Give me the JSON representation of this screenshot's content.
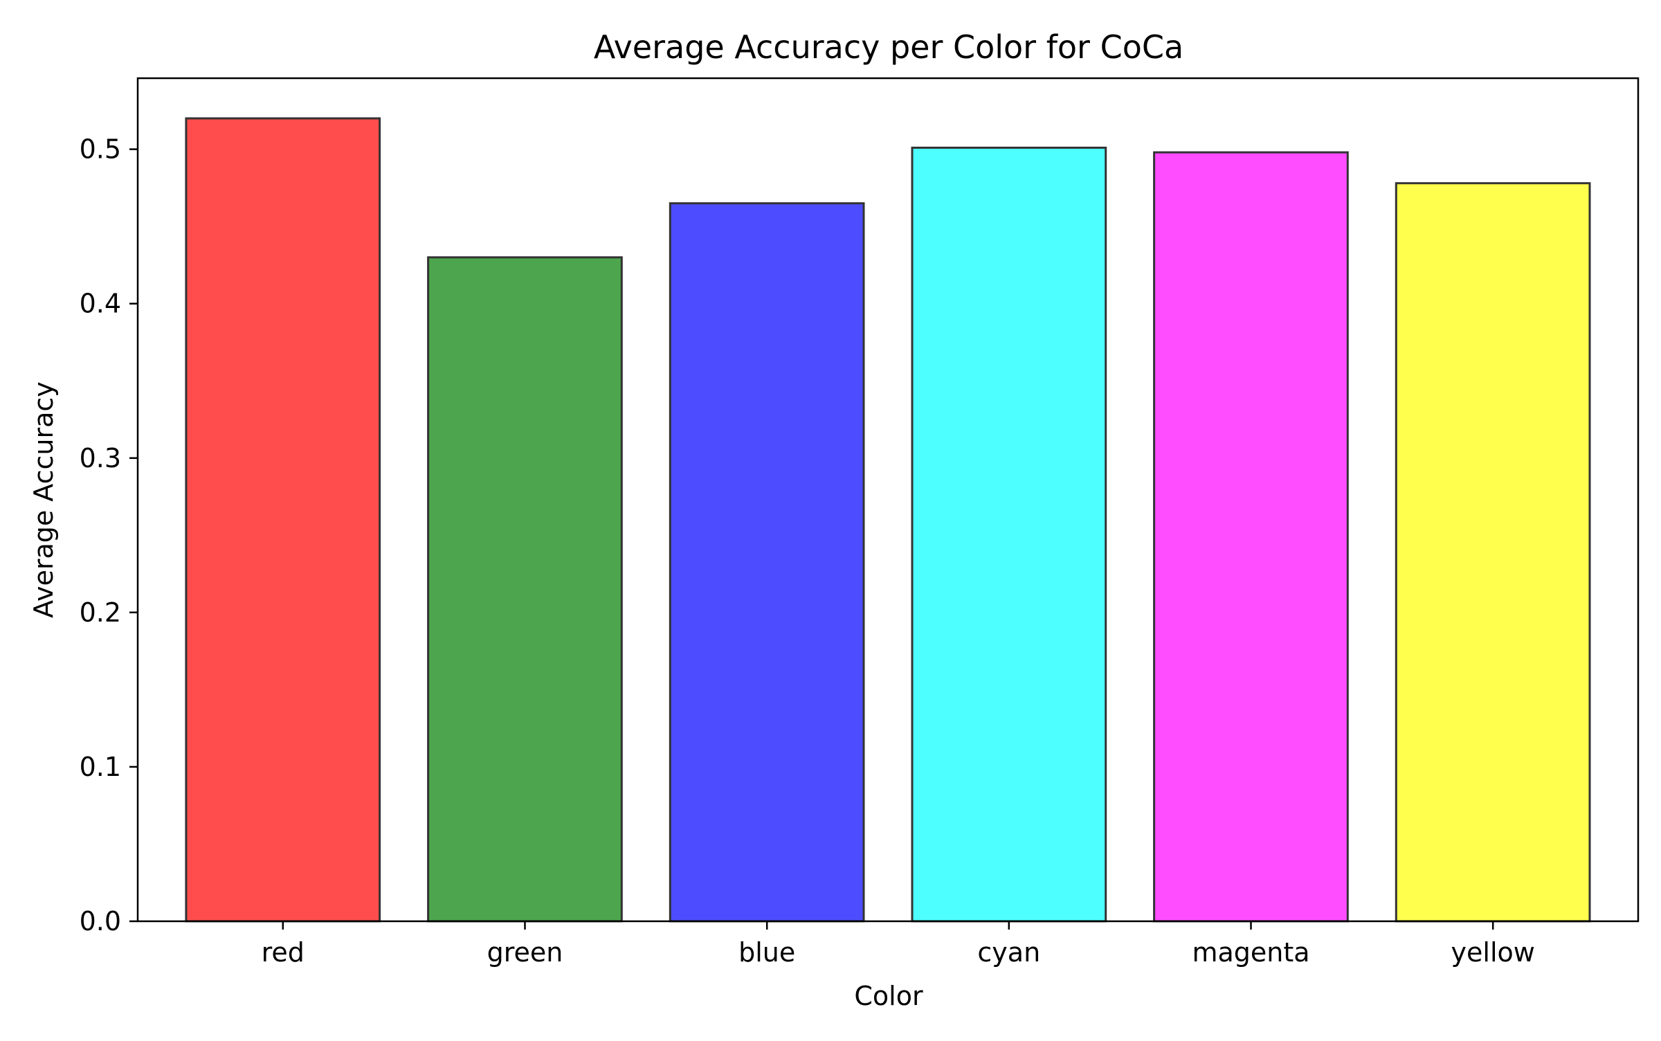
{
  "chart_data": {
    "type": "bar",
    "title": "Average Accuracy per Color for CoCa",
    "xlabel": "Color",
    "ylabel": "Average Accuracy",
    "categories": [
      "red",
      "green",
      "blue",
      "cyan",
      "magenta",
      "yellow"
    ],
    "values": [
      0.52,
      0.43,
      0.465,
      0.501,
      0.498,
      0.478
    ],
    "colors": [
      "#ff4d4d",
      "#4da64d",
      "#4d4dff",
      "#4dffff",
      "#ff4dff",
      "#ffff4d"
    ],
    "edge_color": "#333333",
    "ylim": [
      0,
      0.546
    ],
    "yticks": [
      0.0,
      0.1,
      0.2,
      0.3,
      0.4,
      0.5
    ],
    "ytick_labels": [
      "0.0",
      "0.1",
      "0.2",
      "0.3",
      "0.4",
      "0.5"
    ],
    "grid": false,
    "legend": "none"
  }
}
